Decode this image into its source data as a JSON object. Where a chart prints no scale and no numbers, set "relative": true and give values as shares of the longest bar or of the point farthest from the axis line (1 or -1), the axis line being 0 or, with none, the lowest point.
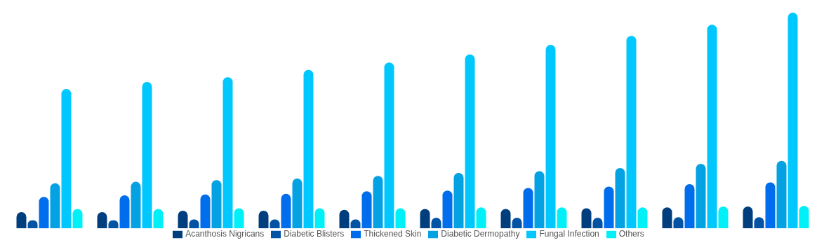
{
  "chart_data": {
    "type": "bar",
    "relative": true,
    "categories": [
      null,
      null,
      null,
      null,
      null,
      null,
      null,
      null,
      null,
      null
    ],
    "legend": "bottom",
    "grid": false,
    "series": [
      {
        "name": "Acanthosis Nigricans",
        "color": "#003e7e",
        "values": [
          0.075,
          0.075,
          0.082,
          0.082,
          0.086,
          0.09,
          0.09,
          0.093,
          0.097,
          0.101
        ]
      },
      {
        "name": "Diabetic Blisters",
        "color": "#0353a4",
        "values": [
          0.037,
          0.037,
          0.041,
          0.041,
          0.041,
          0.049,
          0.049,
          0.049,
          0.052,
          0.052
        ]
      },
      {
        "name": "Thickened Skin",
        "color": "#006ded",
        "values": [
          0.146,
          0.153,
          0.157,
          0.16,
          0.172,
          0.175,
          0.187,
          0.194,
          0.205,
          0.213
        ]
      },
      {
        "name": "Diabetic Dermopathy",
        "color": "#05a2e3",
        "values": [
          0.209,
          0.216,
          0.224,
          0.231,
          0.243,
          0.257,
          0.265,
          0.28,
          0.299,
          0.313
        ]
      },
      {
        "name": "Fungal Infection",
        "color": "#00c8ff",
        "values": [
          0.646,
          0.679,
          0.701,
          0.735,
          0.769,
          0.806,
          0.851,
          0.892,
          0.944,
          1
        ]
      },
      {
        "name": "Others",
        "color": "#00f0f8",
        "values": [
          0.09,
          0.09,
          0.093,
          0.093,
          0.093,
          0.097,
          0.097,
          0.097,
          0.101,
          0.104
        ]
      }
    ]
  }
}
